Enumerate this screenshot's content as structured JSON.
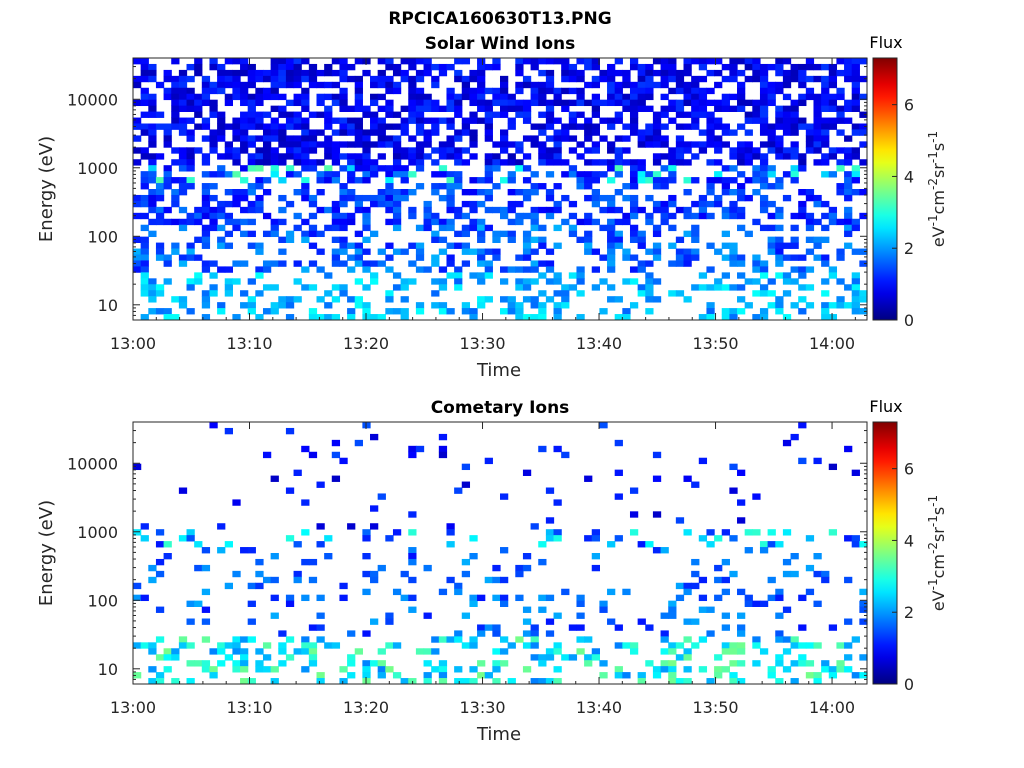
{
  "figure": {
    "title": "RPCICA160630T13.PNG"
  },
  "chart_data": [
    {
      "type": "heatmap",
      "title": "Solar Wind Ions",
      "xlabel": "Time",
      "ylabel": "Energy (eV)",
      "x_tick_labels": [
        "13:00",
        "13:10",
        "13:20",
        "13:30",
        "13:40",
        "13:50",
        "14:00"
      ],
      "x_range_minutes": [
        0,
        63
      ],
      "y_scale": "log",
      "y_range": [
        6,
        40000
      ],
      "y_tick_values": [
        10,
        100,
        1000,
        10000
      ],
      "y_tick_labels": [
        "10",
        "100",
        "1000",
        "10000"
      ],
      "colorbar": {
        "title": "Flux",
        "label": "eV-1cm-2sr-1s-1",
        "colormap": "jet",
        "range": [
          0,
          7.3
        ],
        "tick_values": [
          0,
          2,
          4,
          6
        ],
        "tick_labels": [
          "0",
          "2",
          "4",
          "6"
        ]
      },
      "grid": false,
      "data_description": "Dense low flux (~0.5-1.5) across 1e3-3e4 eV; intermittent ~2-3 flux near 700-1000 eV and below 30 eV; sparser between 30-300 eV"
    },
    {
      "type": "heatmap",
      "title": "Cometary Ions",
      "xlabel": "Time",
      "ylabel": "Energy (eV)",
      "x_tick_labels": [
        "13:00",
        "13:10",
        "13:20",
        "13:30",
        "13:40",
        "13:50",
        "14:00"
      ],
      "x_range_minutes": [
        0,
        63
      ],
      "y_scale": "log",
      "y_range": [
        6,
        40000
      ],
      "y_tick_values": [
        10,
        100,
        1000,
        10000
      ],
      "y_tick_labels": [
        "10",
        "100",
        "1000",
        "10000"
      ],
      "colorbar": {
        "title": "Flux",
        "label": "eV-1cm-2sr-1s-1",
        "colormap": "jet",
        "range": [
          0,
          7.3
        ],
        "tick_values": [
          0,
          2,
          4,
          6
        ],
        "tick_labels": [
          "0",
          "2",
          "4",
          "6"
        ]
      },
      "grid": false,
      "data_description": "Sparse low flux above 1000 eV; flux ~2-3 near 700-800 eV; scattered ~1.5-2 between 30-300 eV; flux 2-4 below 25 eV"
    }
  ]
}
